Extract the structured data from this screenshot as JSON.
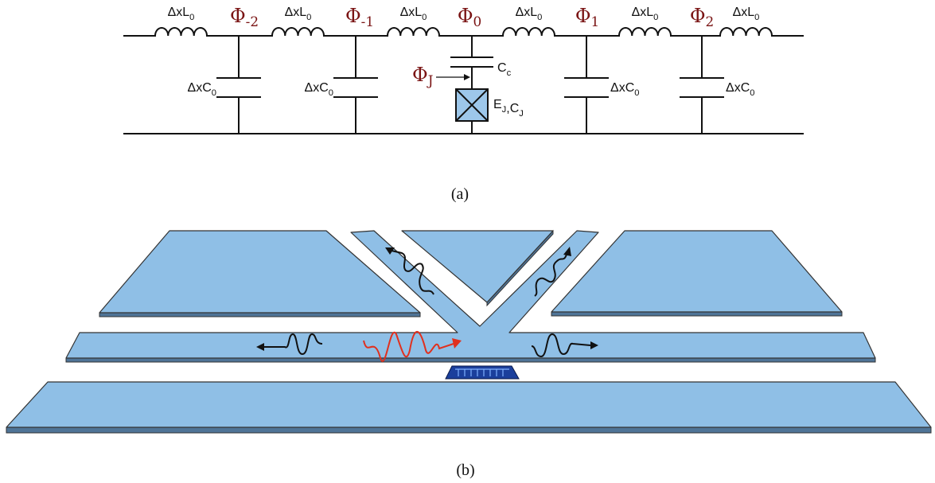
{
  "circuit": {
    "inductors": [
      {
        "text": "ΔxL",
        "sub": "0"
      },
      {
        "text": "ΔxL",
        "sub": "0"
      },
      {
        "text": "ΔxL",
        "sub": "0"
      },
      {
        "text": "ΔxL",
        "sub": "0"
      },
      {
        "text": "ΔxL",
        "sub": "0"
      },
      {
        "text": "ΔxL",
        "sub": "0"
      }
    ],
    "nodes": [
      {
        "text": "Φ",
        "sub": "-2"
      },
      {
        "text": "Φ",
        "sub": "-1"
      },
      {
        "text": "Φ",
        "sub": "0"
      },
      {
        "text": "Φ",
        "sub": "1"
      },
      {
        "text": "Φ",
        "sub": "2"
      }
    ],
    "junction_node": {
      "text": "Φ",
      "sub": "J"
    },
    "coupling_capacitor": {
      "text": "C",
      "sub": "c"
    },
    "junction": {
      "parts": [
        {
          "text": "E",
          "sub": "J"
        },
        {
          "text": ",C",
          "sub": "J"
        }
      ]
    },
    "shunt_capacitors": [
      {
        "text": "ΔxC",
        "sub": "0"
      },
      {
        "text": "ΔxC",
        "sub": "0"
      },
      {
        "text": "ΔxC",
        "sub": "0"
      },
      {
        "text": "ΔxC",
        "sub": "0"
      }
    ]
  },
  "captions": {
    "a": "(a)",
    "b": "(b)"
  }
}
